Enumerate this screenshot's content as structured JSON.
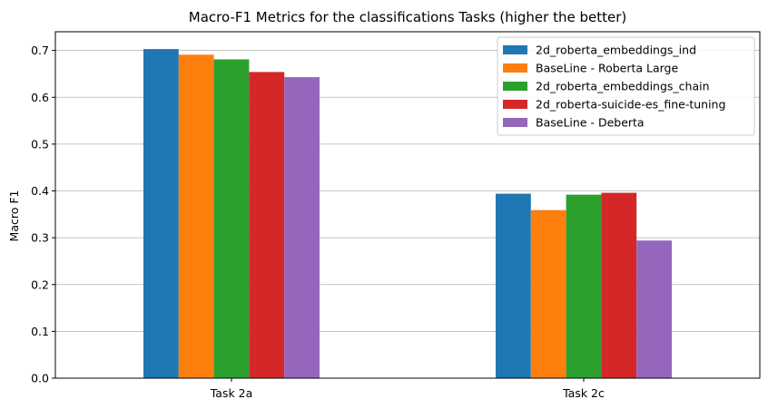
{
  "chart_data": {
    "type": "bar",
    "title": "Macro-F1 Metrics for the classifications Tasks (higher the better)",
    "xlabel": "",
    "ylabel": "Macro F1",
    "ylim": [
      0,
      0.74
    ],
    "yticks": [
      "0.0",
      "0.1",
      "0.2",
      "0.3",
      "0.4",
      "0.5",
      "0.6",
      "0.7"
    ],
    "grid": "horizontal",
    "legend_position": "top-right",
    "categories": [
      "Task 2a",
      "Task 2c"
    ],
    "series": [
      {
        "name": "2d_roberta_embeddings_ind",
        "color": "#1f77b4",
        "values": [
          0.703,
          0.394
        ]
      },
      {
        "name": "BaseLine - Roberta Large",
        "color": "#ff7f0e",
        "values": [
          0.691,
          0.359
        ]
      },
      {
        "name": "2d_roberta_embeddings_chain",
        "color": "#2ca02c",
        "values": [
          0.681,
          0.392
        ]
      },
      {
        "name": "2d_roberta-suicide-es_fine-tuning",
        "color": "#d62728",
        "values": [
          0.654,
          0.396
        ]
      },
      {
        "name": "BaseLine - Deberta",
        "color": "#9467bd",
        "values": [
          0.643,
          0.294
        ]
      }
    ]
  }
}
